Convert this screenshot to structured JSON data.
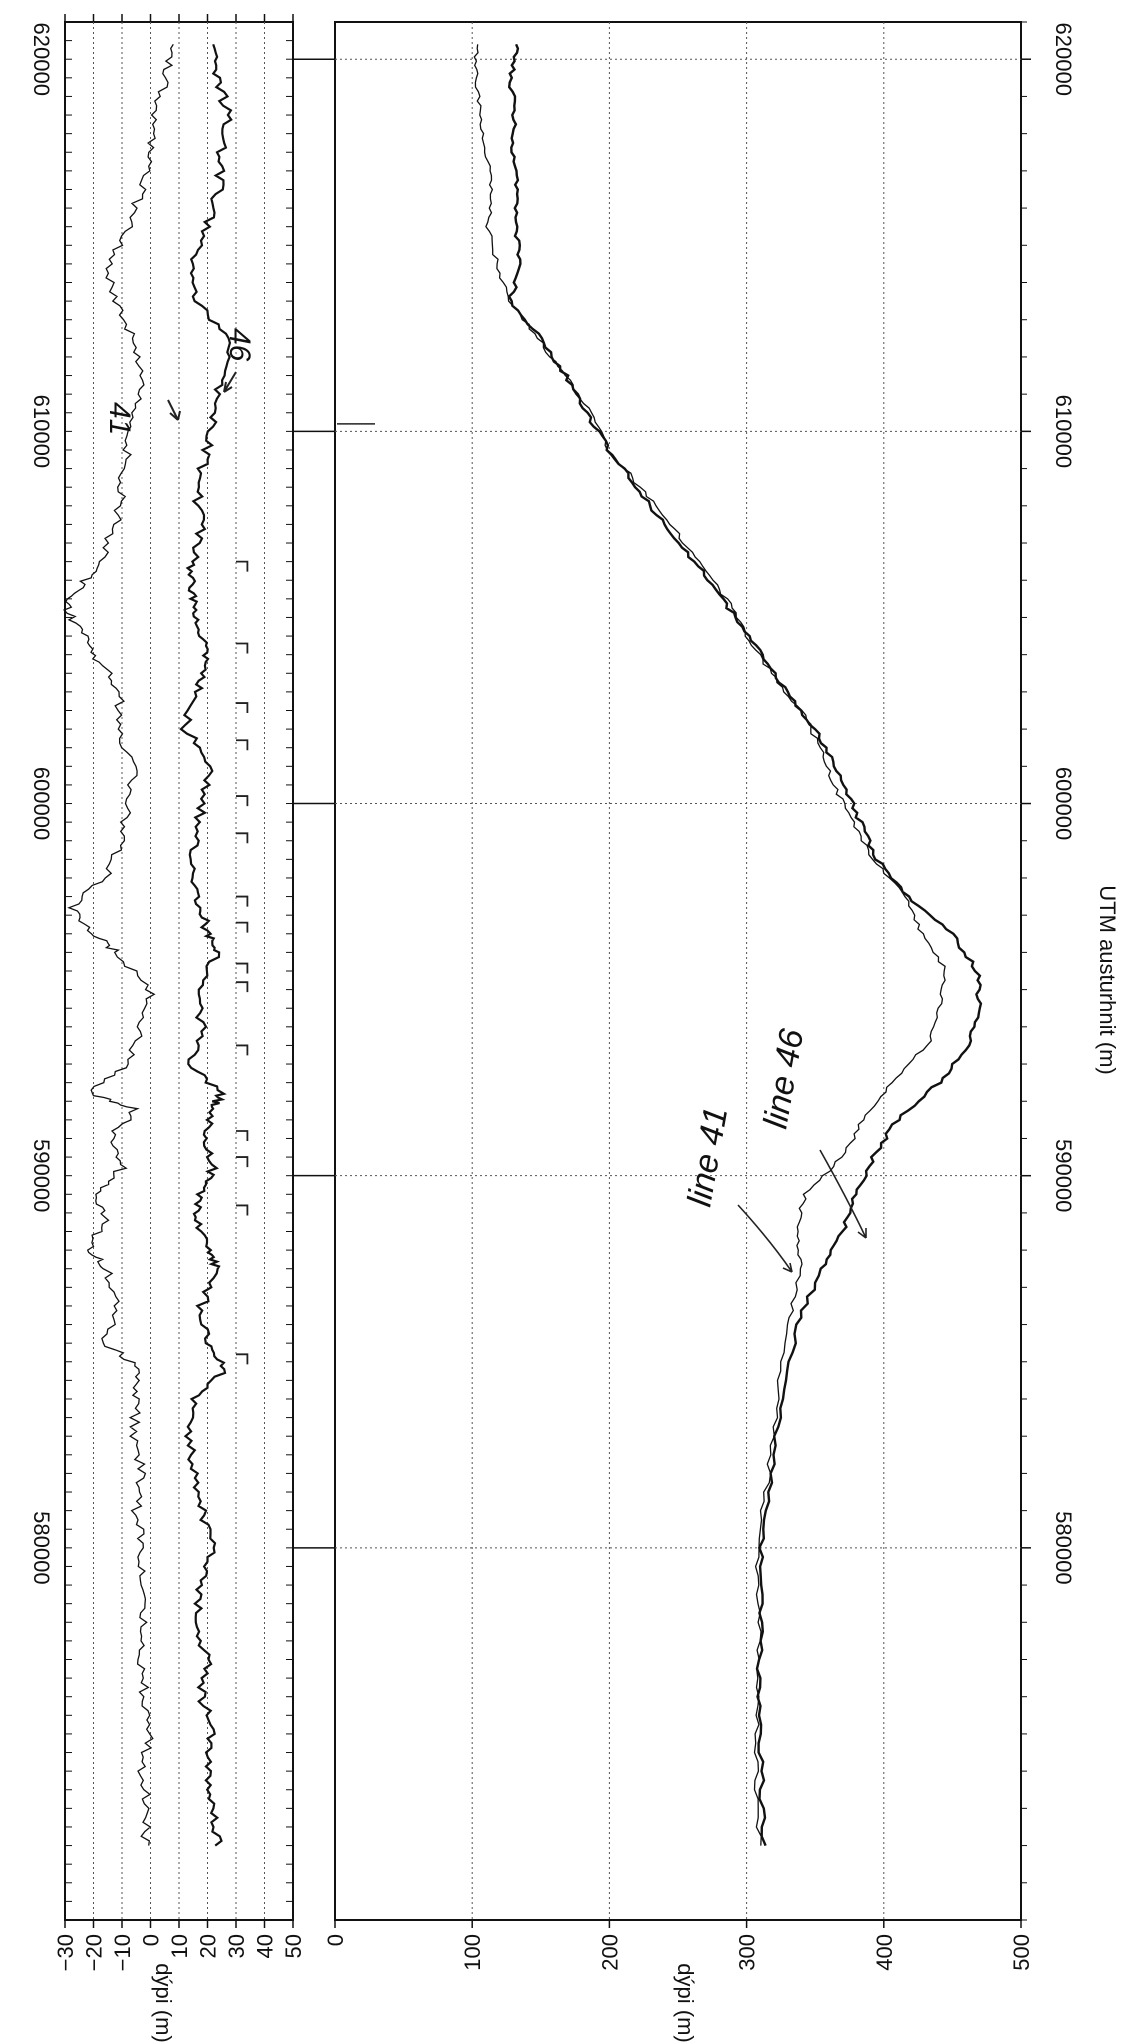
{
  "chart_data": [
    {
      "type": "line",
      "panel": "top",
      "ylabel": "dýpi (m)",
      "yticks": [
        -30,
        -20,
        -10,
        0,
        10,
        20,
        30,
        40,
        50
      ],
      "ylim": [
        -30,
        50
      ],
      "xlim": [
        570000,
        621000
      ],
      "xticks": [
        580000,
        590000,
        600000,
        610000,
        620000
      ],
      "grid": "horizontal dotted at every 10 m",
      "series": [
        {
          "name": "41",
          "x": [
            572000,
            573000,
            574000,
            575000,
            576000,
            577000,
            578000,
            579000,
            580000,
            581000,
            582000,
            583000,
            584000,
            584800,
            585500,
            586500,
            587500,
            588000,
            588800,
            589500,
            590200,
            591000,
            591800,
            592200,
            593000,
            594000,
            595000,
            596000,
            596500,
            597200,
            598000,
            599000,
            600000,
            601000,
            602000,
            603000,
            603800,
            604500,
            605200,
            605800,
            606500,
            607500,
            608500,
            609500,
            610500,
            611500,
            612500,
            613500,
            614500,
            615500,
            616500,
            617500,
            618500,
            619500,
            620400
          ],
          "y": [
            -2,
            -1,
            -3,
            0,
            -2,
            -4,
            -2,
            -4,
            -3,
            -5,
            -3,
            -6,
            -5,
            -3,
            -16,
            -12,
            -15,
            -22,
            -16,
            -20,
            -10,
            -14,
            -5,
            -22,
            -8,
            -3,
            0,
            -12,
            -20,
            -28,
            -16,
            -10,
            -8,
            -5,
            -12,
            -10,
            -18,
            -22,
            -30,
            -25,
            -18,
            -12,
            -10,
            -8,
            -5,
            -3,
            -6,
            -12,
            -15,
            -8,
            -3,
            0,
            2,
            5,
            8
          ]
        },
        {
          "name": "46",
          "x": [
            572000,
            573000,
            574000,
            575000,
            576000,
            577000,
            578000,
            579000,
            580000,
            581000,
            582000,
            583000,
            584000,
            584800,
            585500,
            586500,
            587500,
            588000,
            588800,
            589500,
            590200,
            591000,
            591800,
            592200,
            593000,
            594000,
            595000,
            596000,
            596500,
            597200,
            598000,
            599000,
            600000,
            601000,
            602000,
            603000,
            603800,
            604500,
            605200,
            605800,
            606500,
            607500,
            608500,
            609500,
            610500,
            611500,
            612500,
            613500,
            614500,
            615500,
            616500,
            617500,
            618500,
            619500,
            620400
          ],
          "y": [
            24,
            22,
            20,
            22,
            18,
            20,
            16,
            18,
            22,
            18,
            15,
            14,
            15,
            26,
            20,
            18,
            24,
            20,
            16,
            18,
            22,
            19,
            21,
            25,
            14,
            18,
            16,
            24,
            20,
            18,
            14,
            16,
            18,
            22,
            12,
            16,
            20,
            18,
            16,
            14,
            15,
            18,
            16,
            20,
            22,
            25,
            28,
            16,
            14,
            20,
            24,
            25,
            27,
            24,
            22
          ]
        }
      ],
      "annotations": [
        "41",
        "46"
      ]
    },
    {
      "type": "line",
      "panel": "bottom",
      "ylabel": "dýpi (m)",
      "xlabel": "UTM austurhnit (m)",
      "yticks": [
        0,
        100,
        200,
        300,
        400,
        500
      ],
      "ylim": [
        0,
        500
      ],
      "xlim": [
        570000,
        621000
      ],
      "xticks": [
        580000,
        590000,
        600000,
        610000,
        620000
      ],
      "grid": "dotted at every tick",
      "series": [
        {
          "name": "line 41",
          "x": [
            572000,
            574000,
            576000,
            578000,
            580000,
            582000,
            584000,
            586000,
            587500,
            588500,
            589500,
            590500,
            591500,
            592500,
            593500,
            594500,
            595500,
            596500,
            597500,
            598500,
            599500,
            600500,
            601500,
            602500,
            603500,
            604500,
            605500,
            606500,
            607500,
            608500,
            609500,
            610500,
            611500,
            612500,
            613500,
            614500,
            615500,
            616500,
            617500,
            618500,
            619500,
            620400
          ],
          "y": [
            309,
            307,
            308,
            309,
            308,
            316,
            322,
            330,
            340,
            336,
            342,
            370,
            385,
            405,
            432,
            440,
            446,
            428,
            415,
            392,
            378,
            363,
            354,
            340,
            318,
            300,
            285,
            264,
            245,
            222,
            200,
            186,
            168,
            148,
            128,
            118,
            112,
            114,
            110,
            106,
            102,
            104
          ]
        },
        {
          "name": "line 46",
          "x": [
            572000,
            574000,
            576000,
            578000,
            580000,
            582000,
            584000,
            586000,
            587500,
            588500,
            589500,
            590500,
            591500,
            592500,
            593500,
            594500,
            595500,
            596500,
            597500,
            598500,
            599500,
            600500,
            601500,
            602500,
            603500,
            604500,
            605500,
            606500,
            607500,
            608500,
            609500,
            610500,
            611500,
            612500,
            613500,
            614500,
            615500,
            616500,
            617500,
            618500,
            619500,
            620400
          ],
          "y": [
            312,
            311,
            309,
            310,
            311,
            318,
            325,
            337,
            355,
            370,
            380,
            392,
            410,
            440,
            462,
            470,
            468,
            450,
            418,
            395,
            383,
            370,
            358,
            340,
            320,
            302,
            282,
            262,
            240,
            220,
            200,
            183,
            168,
            150,
            128,
            135,
            131,
            133,
            130,
            131,
            128,
            132
          ]
        }
      ],
      "annotations": [
        "line 41",
        "line 46"
      ]
    }
  ]
}
